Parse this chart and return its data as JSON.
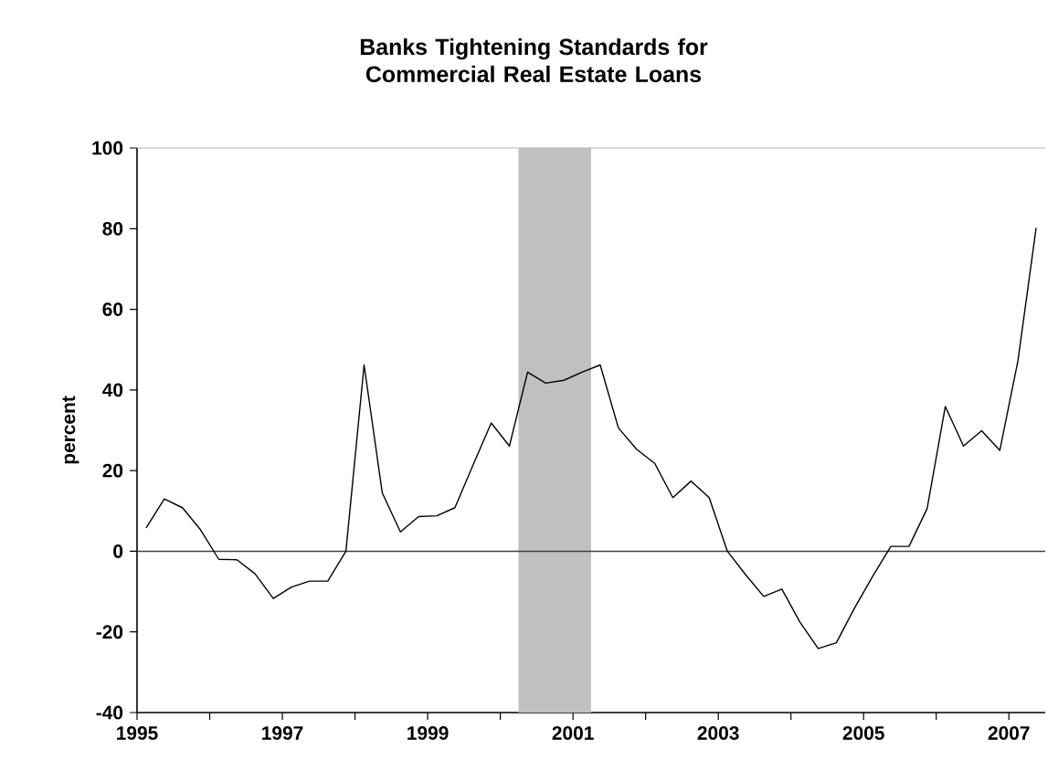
{
  "chart_data": {
    "type": "line",
    "title": "Banks Tightening Standards for Commercial Real Estate Loans",
    "ylabel": "percent",
    "xlim": [
      1995,
      2007.5
    ],
    "ylim": [
      -40,
      100
    ],
    "xticks": [
      1995,
      {
        "value": 1996,
        "label": null
      },
      1997,
      {
        "value": 1998,
        "label": null
      },
      1999,
      {
        "value": 2000,
        "label": null
      },
      2001,
      {
        "value": 2002,
        "label": null
      },
      2003,
      {
        "value": 2004,
        "label": null
      },
      2005,
      {
        "value": 2006,
        "label": null
      },
      2007
    ],
    "yticks": [
      -40,
      -20,
      0,
      20,
      40,
      60,
      80,
      100
    ],
    "marker": "none",
    "line_style": "solid",
    "ref_lines": [
      {
        "axis": "y",
        "value": 0,
        "color": "#404040"
      }
    ],
    "bands": [
      {
        "axis": "x",
        "from": 2000.25,
        "to": 2001.25,
        "color": "#c0c0c0"
      }
    ],
    "series": [
      {
        "color": "#000000",
        "x": [
          1995.125,
          1995.375,
          1995.625,
          1995.875,
          1996.125,
          1996.375,
          1996.625,
          1996.875,
          1997.125,
          1997.375,
          1997.625,
          1997.875,
          1998.125,
          1998.375,
          1998.625,
          1998.875,
          1999.125,
          1999.375,
          1999.625,
          1999.875,
          2000.125,
          2000.375,
          2000.625,
          2000.875,
          2001.125,
          2001.375,
          2001.625,
          2001.875,
          2002.125,
          2002.375,
          2002.625,
          2002.875,
          2003.125,
          2003.375,
          2003.625,
          2003.875,
          2004.125,
          2004.375,
          2004.625,
          2004.875,
          2005.125,
          2005.375,
          2005.625,
          2005.875,
          2006.125,
          2006.375,
          2006.625,
          2006.875,
          2007.125,
          2007.375
        ],
        "values": [
          5.8,
          13.0,
          10.8,
          5.3,
          -2.0,
          -2.1,
          -5.6,
          -11.7,
          -8.9,
          -7.4,
          -7.4,
          0,
          46.2,
          14.5,
          4.8,
          8.6,
          8.8,
          10.8,
          21.4,
          31.8,
          26.1,
          44.4,
          41.7,
          42.4,
          44.4,
          46.2,
          30.6,
          25.3,
          21.8,
          13.3,
          17.4,
          13.3,
          0,
          -5.8,
          -11.2,
          -9.4,
          -17.6,
          -24.1,
          -22.7,
          -14.1,
          -6.2,
          1.2,
          1.2,
          10.6,
          35.9,
          26.1,
          29.9,
          25.0,
          47.3,
          80.2
        ]
      }
    ]
  }
}
